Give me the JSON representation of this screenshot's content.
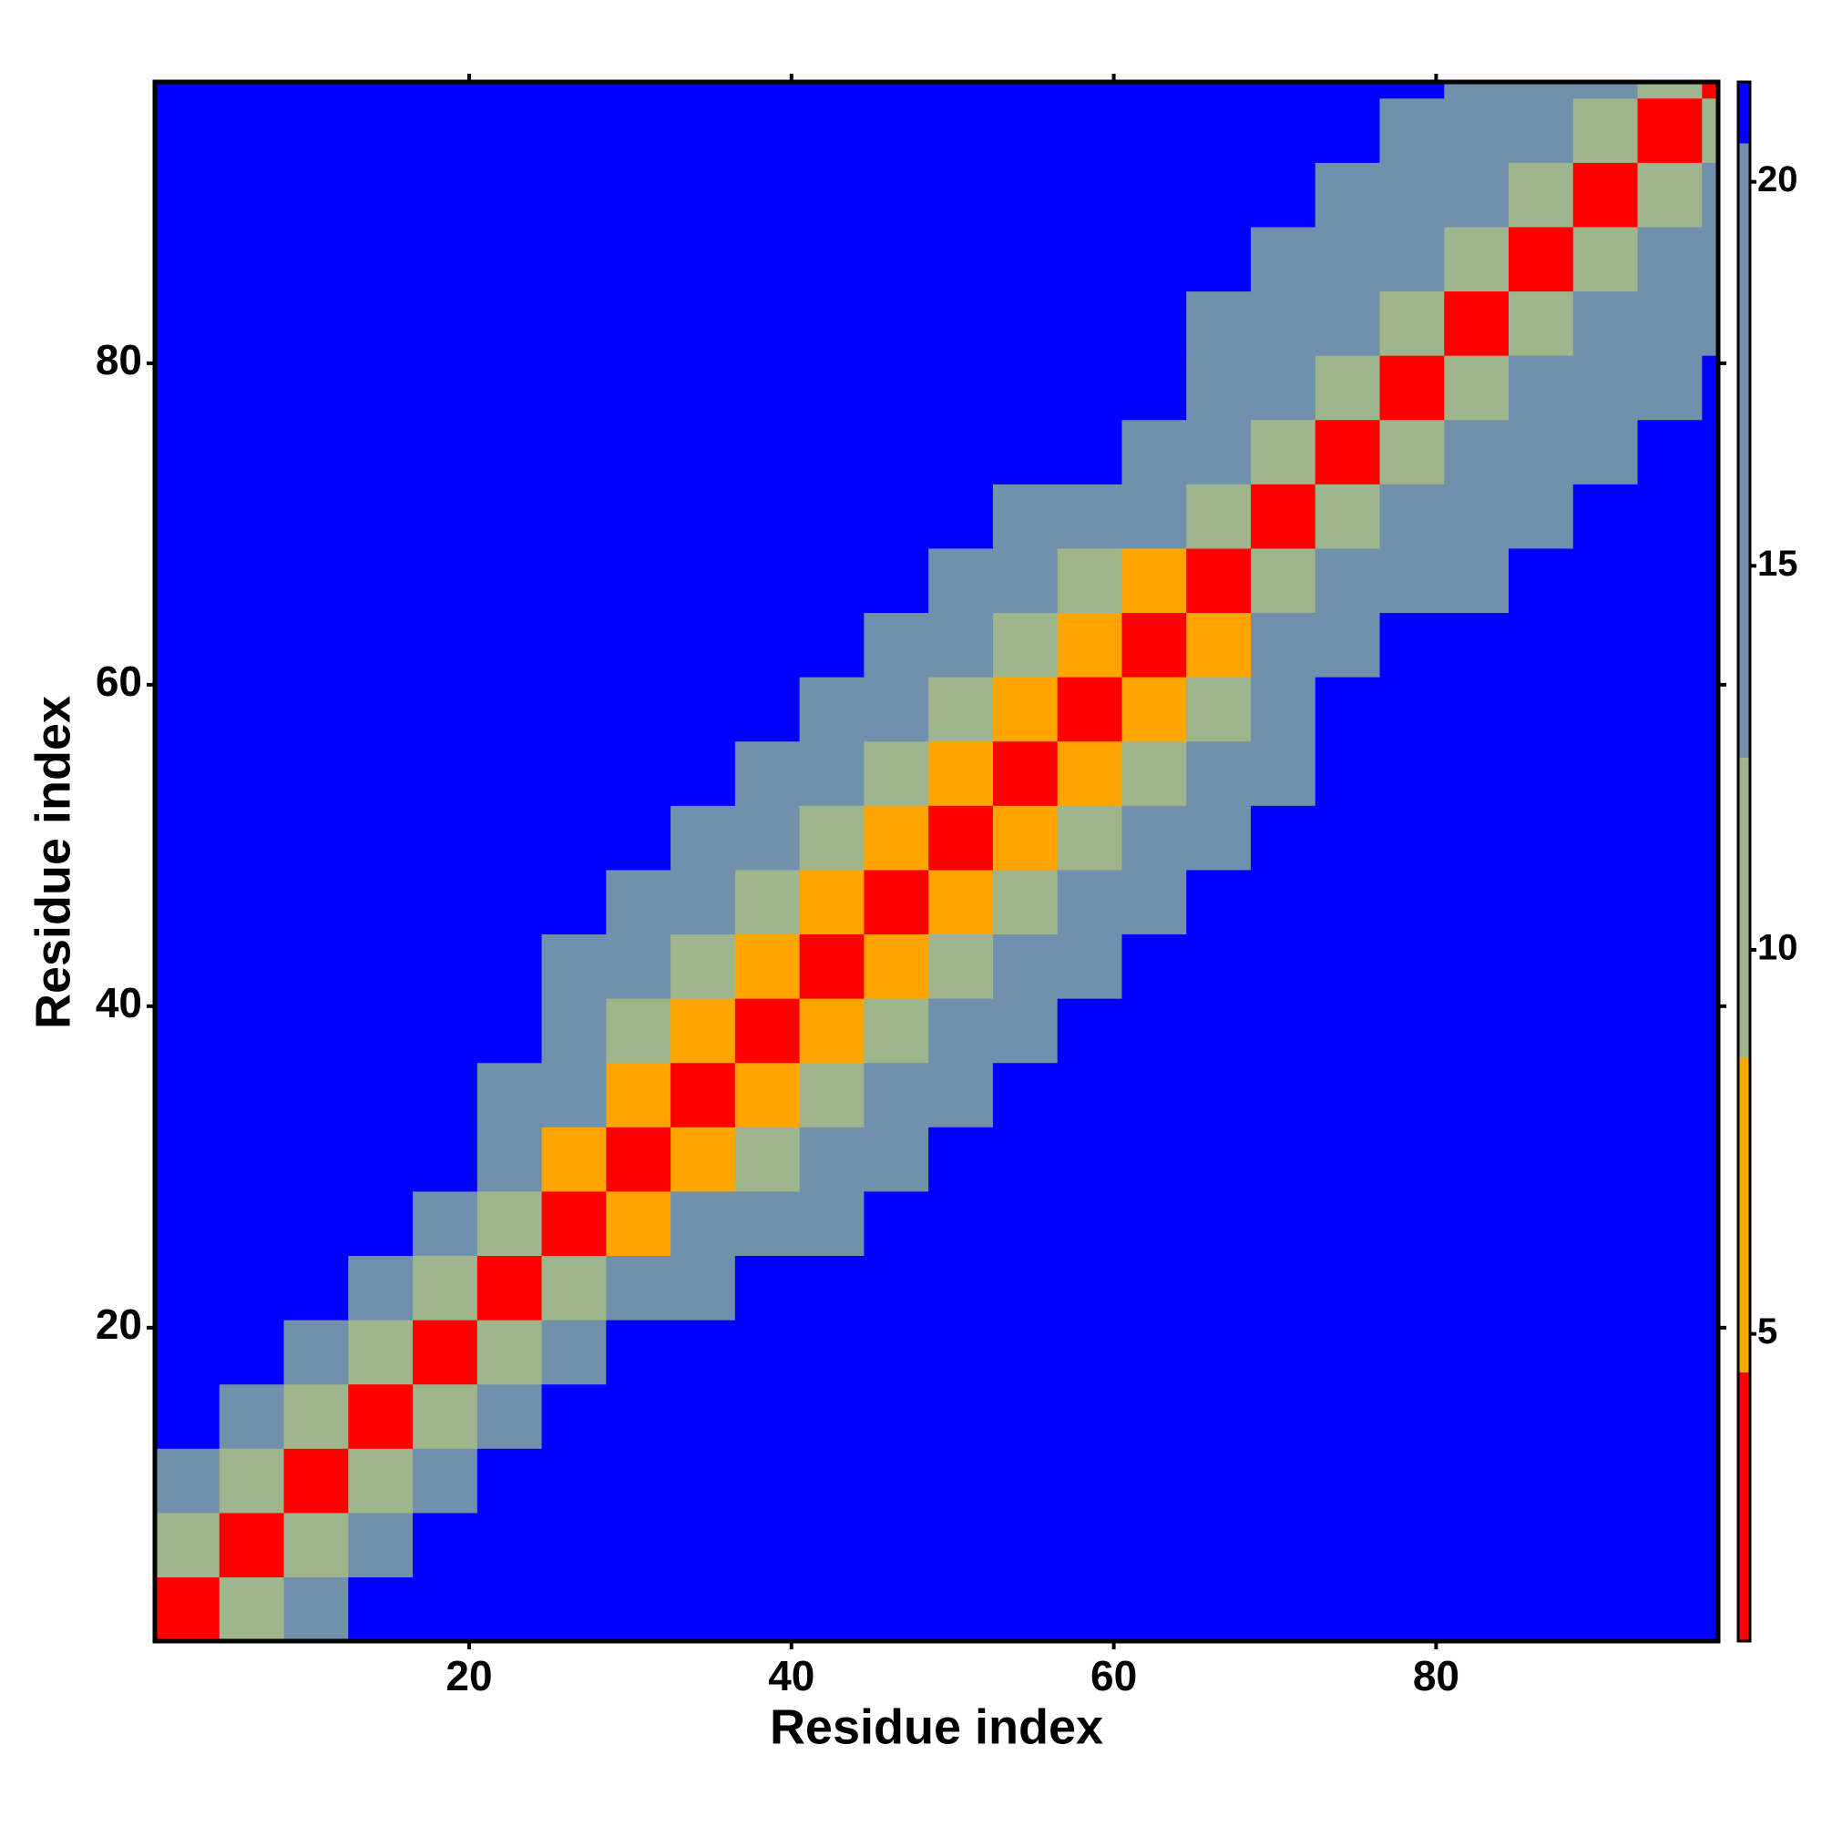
{
  "chart_data": {
    "type": "heatmap",
    "xlabel": "Residue index",
    "ylabel": "Residue index",
    "xlim": [
      0.5,
      97.5
    ],
    "ylim": [
      0.5,
      97.5
    ],
    "xticks": [
      20,
      40,
      60,
      80
    ],
    "yticks": [
      20,
      40,
      60,
      80
    ],
    "xbins": [
      0.5,
      4.5,
      8.5,
      12.5,
      16.5,
      20.5,
      24.5,
      28.5,
      32.5,
      36.5,
      40.5,
      44.5,
      48.5,
      52.5,
      56.5,
      60.5,
      64.5,
      68.5,
      72.5,
      76.5,
      80.5,
      84.5,
      88.5,
      92.5,
      96.5,
      97.5
    ],
    "ybins": [
      0.5,
      4.5,
      8.5,
      12.5,
      16.5,
      20.5,
      24.5,
      28.5,
      32.5,
      36.5,
      40.5,
      44.5,
      48.5,
      52.5,
      56.5,
      60.5,
      64.5,
      68.5,
      72.5,
      76.5,
      80.5,
      84.5,
      88.5,
      92.5,
      96.5,
      97.5
    ],
    "zlim": [
      1,
      21.3
    ],
    "cticks": [
      5,
      10,
      15,
      20
    ],
    "colorscale": [
      [
        4.5,
        "#ff0000"
      ],
      [
        8.6,
        "#ffa500"
      ],
      [
        12.5,
        "#9fb68c"
      ],
      [
        20.5,
        "#7090ac"
      ],
      [
        21.3,
        "#0000ff"
      ]
    ],
    "z": [
      [
        3.5,
        9,
        16,
        21,
        21,
        21,
        21,
        21,
        21,
        21,
        21,
        21,
        21,
        21,
        21,
        21,
        21,
        21,
        21,
        21,
        21,
        21,
        21,
        21,
        21
      ],
      [
        9,
        3.5,
        9,
        16,
        21,
        21,
        21,
        21,
        21,
        21,
        21,
        21,
        21,
        21,
        21,
        21,
        21,
        21,
        21,
        21,
        21,
        21,
        21,
        21,
        21
      ],
      [
        16,
        9,
        3.5,
        9,
        16,
        21,
        21,
        21,
        21,
        21,
        21,
        21,
        21,
        21,
        21,
        21,
        21,
        21,
        21,
        21,
        21,
        21,
        21,
        21,
        21
      ],
      [
        21,
        16,
        9,
        3.5,
        9,
        16,
        21,
        21,
        21,
        21,
        21,
        21,
        21,
        21,
        21,
        21,
        21,
        21,
        21,
        21,
        21,
        21,
        21,
        21,
        21
      ],
      [
        21,
        21,
        16,
        9,
        3.5,
        9,
        16,
        21,
        21,
        21,
        21,
        21,
        21,
        21,
        21,
        21,
        21,
        21,
        21,
        21,
        21,
        21,
        21,
        21,
        21
      ],
      [
        21,
        21,
        21,
        16,
        9,
        3.5,
        9,
        13,
        18,
        21,
        21,
        21,
        21,
        21,
        21,
        21,
        21,
        21,
        21,
        21,
        21,
        21,
        21,
        21,
        21
      ],
      [
        21,
        21,
        21,
        21,
        16,
        9,
        3.5,
        8.5,
        13,
        18,
        18,
        21,
        21,
        21,
        21,
        21,
        21,
        21,
        21,
        21,
        21,
        21,
        21,
        21,
        21
      ],
      [
        21,
        21,
        21,
        21,
        21,
        13,
        8.5,
        3.5,
        8.5,
        11,
        14,
        18,
        21,
        21,
        21,
        21,
        21,
        21,
        21,
        21,
        21,
        21,
        21,
        21,
        21
      ],
      [
        21,
        21,
        21,
        21,
        21,
        18,
        13,
        8.5,
        3.5,
        8,
        11,
        14,
        18,
        21,
        21,
        21,
        21,
        21,
        21,
        21,
        21,
        21,
        21,
        21,
        21
      ],
      [
        21,
        21,
        21,
        21,
        21,
        21,
        18,
        11,
        8,
        3.5,
        8,
        11,
        14,
        18,
        21,
        21,
        21,
        21,
        21,
        21,
        21,
        21,
        21,
        21,
        21
      ],
      [
        21,
        21,
        21,
        21,
        21,
        21,
        18,
        14,
        11,
        8,
        3.5,
        8,
        11,
        14,
        18,
        21,
        21,
        21,
        21,
        21,
        21,
        21,
        21,
        21,
        21
      ],
      [
        21,
        21,
        21,
        21,
        21,
        21,
        21,
        18,
        14,
        11,
        8,
        3.5,
        8,
        11,
        14,
        18,
        21,
        21,
        21,
        21,
        21,
        21,
        21,
        21,
        21
      ],
      [
        21,
        21,
        21,
        21,
        21,
        21,
        21,
        21,
        18,
        14,
        11,
        8,
        3.5,
        8,
        11,
        14,
        18,
        21,
        21,
        21,
        21,
        21,
        21,
        21,
        21
      ],
      [
        21,
        21,
        21,
        21,
        21,
        21,
        21,
        21,
        21,
        18,
        14,
        11,
        8,
        3.5,
        8,
        11,
        14,
        18,
        21,
        21,
        21,
        21,
        21,
        21,
        21
      ],
      [
        21,
        21,
        21,
        21,
        21,
        21,
        21,
        21,
        21,
        21,
        18,
        14,
        11,
        8,
        3.5,
        8,
        11,
        14,
        21,
        21,
        21,
        21,
        21,
        21,
        21
      ],
      [
        21,
        21,
        21,
        21,
        21,
        21,
        21,
        21,
        21,
        21,
        21,
        18,
        14,
        11,
        8,
        3.5,
        8,
        14,
        19,
        21,
        21,
        21,
        21,
        21,
        21
      ],
      [
        21,
        21,
        21,
        21,
        21,
        21,
        21,
        21,
        21,
        21,
        21,
        21,
        18,
        14,
        11,
        8,
        3.5,
        9,
        14,
        19,
        19,
        21,
        21,
        21,
        21
      ],
      [
        21,
        21,
        21,
        21,
        21,
        21,
        21,
        21,
        21,
        21,
        21,
        21,
        21,
        18,
        14,
        14,
        9,
        3.5,
        9,
        14,
        17,
        19,
        21,
        21,
        21
      ],
      [
        21,
        21,
        21,
        21,
        21,
        21,
        21,
        21,
        21,
        21,
        21,
        21,
        21,
        21,
        21,
        19,
        14,
        9,
        3.5,
        10,
        14,
        17,
        19,
        21,
        21
      ],
      [
        21,
        21,
        21,
        21,
        21,
        21,
        21,
        21,
        21,
        21,
        21,
        21,
        21,
        21,
        21,
        21,
        19,
        14,
        10,
        3.5,
        10,
        14,
        17,
        19,
        21
      ],
      [
        21,
        21,
        21,
        21,
        21,
        21,
        21,
        21,
        21,
        21,
        21,
        21,
        21,
        21,
        21,
        21,
        19,
        17,
        14,
        10,
        3.5,
        10,
        14,
        17,
        19
      ],
      [
        21,
        21,
        21,
        21,
        21,
        21,
        21,
        21,
        21,
        21,
        21,
        21,
        21,
        21,
        21,
        21,
        21,
        19,
        17,
        14,
        10,
        3.5,
        10,
        14,
        17
      ],
      [
        21,
        21,
        21,
        21,
        21,
        21,
        21,
        21,
        21,
        21,
        21,
        21,
        21,
        21,
        21,
        21,
        21,
        21,
        19,
        17,
        14,
        10,
        3.5,
        10,
        14
      ],
      [
        21,
        21,
        21,
        21,
        21,
        21,
        21,
        21,
        21,
        21,
        21,
        21,
        21,
        21,
        21,
        21,
        21,
        21,
        21,
        19,
        17,
        14,
        10,
        3.5,
        10
      ],
      [
        21,
        21,
        21,
        21,
        21,
        21,
        21,
        21,
        21,
        21,
        21,
        21,
        21,
        21,
        21,
        21,
        21,
        21,
        21,
        21,
        19,
        17,
        14,
        10,
        3.5
      ]
    ]
  }
}
